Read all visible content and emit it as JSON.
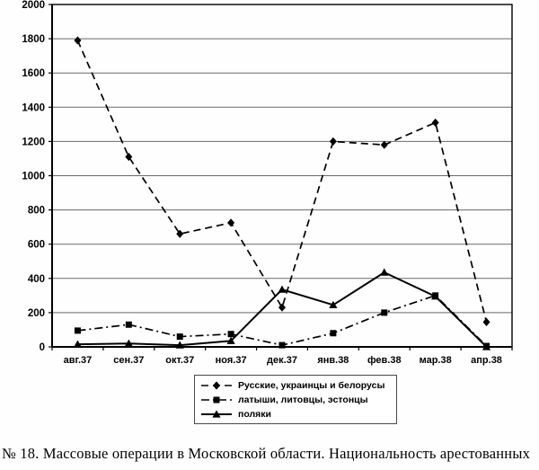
{
  "figure": {
    "caption": "№ 18. Массовые операции в Московской области. Национальность арестованных"
  },
  "chart_data": {
    "type": "line",
    "title": "",
    "xlabel": "",
    "ylabel": "",
    "categories": [
      "авг.37",
      "сен.37",
      "окт.37",
      "ноя.37",
      "дек.37",
      "янв.38",
      "фев.38",
      "мар.38",
      "апр.38"
    ],
    "series": [
      {
        "name": "Русские, украинцы и белорусы",
        "marker": "diamond",
        "line_style": "dashed",
        "values": [
          1790,
          1110,
          660,
          725,
          230,
          1200,
          1180,
          1310,
          145
        ]
      },
      {
        "name": "латыши, литовцы, эстонцы",
        "marker": "square",
        "line_style": "dash-dot",
        "values": [
          95,
          130,
          60,
          75,
          10,
          80,
          200,
          300,
          5
        ]
      },
      {
        "name": "поляки",
        "marker": "triangle",
        "line_style": "solid",
        "values": [
          15,
          20,
          10,
          35,
          335,
          245,
          435,
          295,
          0
        ]
      }
    ],
    "ylim": [
      0,
      2000
    ],
    "ytick_step": 200,
    "grid": true,
    "legend_position": "bottom",
    "line_color": "#000000",
    "marker_color": "#000000"
  }
}
